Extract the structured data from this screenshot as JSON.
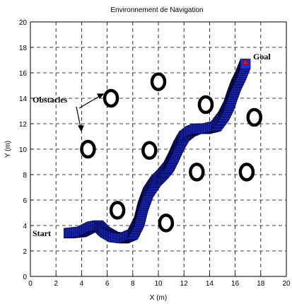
{
  "chart_data": {
    "type": "scatter",
    "title": "Environnement de Navigation",
    "xlabel": "X (m)",
    "ylabel": "Y (m)",
    "xlim": [
      0,
      20
    ],
    "ylim": [
      0,
      20
    ],
    "xticks": [
      0,
      2,
      4,
      6,
      8,
      10,
      12,
      14,
      16,
      18,
      20
    ],
    "yticks": [
      0,
      2,
      4,
      6,
      8,
      10,
      12,
      14,
      16,
      18,
      20
    ],
    "grid": true,
    "grid_style": "dashed",
    "obstacles": [
      {
        "x": 6.3,
        "y": 14.0
      },
      {
        "x": 10.0,
        "y": 15.3
      },
      {
        "x": 4.5,
        "y": 10.0
      },
      {
        "x": 9.3,
        "y": 9.9
      },
      {
        "x": 13.7,
        "y": 13.5
      },
      {
        "x": 17.5,
        "y": 12.5
      },
      {
        "x": 13.0,
        "y": 8.2
      },
      {
        "x": 16.9,
        "y": 8.2
      },
      {
        "x": 6.8,
        "y": 5.2
      },
      {
        "x": 10.6,
        "y": 4.2
      }
    ],
    "trajectory": {
      "x": [
        3.0,
        4.0,
        4.8,
        5.3,
        5.8,
        6.5,
        7.3,
        8.0,
        8.5,
        8.8,
        9.2,
        9.8,
        10.3,
        10.8,
        11.2,
        11.6,
        12.0,
        12.5,
        13.0,
        13.7,
        14.5,
        15.1,
        15.5,
        15.8,
        16.1,
        16.4,
        16.6,
        16.8
      ],
      "y": [
        3.4,
        3.5,
        3.9,
        4.0,
        3.5,
        3.1,
        3.0,
        3.3,
        4.3,
        5.5,
        6.6,
        7.5,
        8.0,
        8.6,
        9.4,
        10.3,
        11.0,
        11.4,
        11.6,
        11.6,
        11.8,
        12.6,
        13.4,
        14.3,
        15.1,
        15.7,
        16.2,
        16.7
      ]
    },
    "start": {
      "x": 3.0,
      "y": 3.4
    },
    "goal": {
      "x": 16.8,
      "y": 16.8
    },
    "colors": {
      "trajectory": "#1f2fd6",
      "trajectory_edge": "#000030",
      "goal_marker": "#e01010",
      "obstacle": "#000000",
      "grid": "#000000"
    },
    "annotations": {
      "start": "Start",
      "goal": "Goal",
      "obstacles": "Obstacles"
    }
  }
}
